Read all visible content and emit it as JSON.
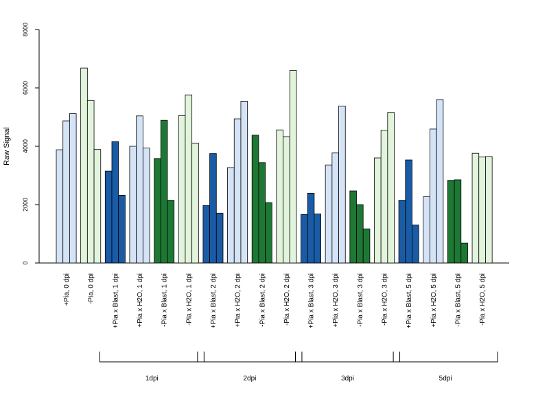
{
  "chart_data": {
    "type": "bar",
    "title": "",
    "xlabel": "",
    "ylabel": "Raw Signal",
    "ylim": [
      0,
      8000
    ],
    "yticks": [
      "0",
      "2000",
      "4000",
      "6000",
      "8000"
    ],
    "grid": false,
    "legend": "none",
    "categories": [
      "+Pia, 0 dpi",
      "-Pia, 0 dpi",
      "+Pia x Blast, 1 dpi",
      "+Pia x H2O, 1 dpi",
      "-Pia x Blast, 1 dpi",
      "-Pia x H2O, 1 dpi",
      "+Pia x Blast, 2 dpi",
      "+Pia x H2O, 2 dpi",
      "-Pia x Blast, 2 dpi",
      "-Pia x H2O, 2 dpi",
      "+Pia x Blast, 3 dpi",
      "+Pia x H2O, 3 dpi",
      "-Pia x Blast, 3 dpi",
      "-Pia x H2O, 3 dpi",
      "+Pia x Blast, 5 dpi",
      "+Pia x H2O, 5 dpi",
      "-Pia x Blast, 5 dpi",
      "-Pia x H2O, 5 dpi"
    ],
    "colors": [
      "#d4e3f5",
      "#e2f5dc",
      "#1a5ba6",
      "#d4e3f5",
      "#1e7834",
      "#e2f5dc",
      "#1a5ba6",
      "#d4e3f5",
      "#1e7834",
      "#e2f5dc",
      "#1a5ba6",
      "#d4e3f5",
      "#1e7834",
      "#e2f5dc",
      "#1a5ba6",
      "#d4e3f5",
      "#1e7834",
      "#e2f5dc"
    ],
    "values": [
      [
        3880,
        4870,
        5120
      ],
      [
        6680,
        5570,
        3890
      ],
      [
        3150,
        4160,
        2320
      ],
      [
        4000,
        5040,
        3940
      ],
      [
        3580,
        4890,
        2150
      ],
      [
        5050,
        5760,
        4110
      ],
      [
        1970,
        3750,
        1710
      ],
      [
        3270,
        4940,
        5540
      ],
      [
        4380,
        3440,
        2070
      ],
      [
        4560,
        4330,
        6600
      ],
      [
        1660,
        2390,
        1680
      ],
      [
        3360,
        3770,
        5380
      ],
      [
        2470,
        2000,
        1170
      ],
      [
        3600,
        4550,
        5160
      ],
      [
        2150,
        3530,
        1300
      ],
      [
        2270,
        4590,
        5600
      ],
      [
        2830,
        2850,
        680
      ],
      [
        3760,
        3630,
        3650
      ]
    ],
    "groups": [
      {
        "label": "1dpi",
        "first": 2,
        "last": 5
      },
      {
        "label": "2dpi",
        "first": 6,
        "last": 9
      },
      {
        "label": "3dpi",
        "first": 10,
        "last": 13
      },
      {
        "label": "5dpi",
        "first": 14,
        "last": 17
      }
    ]
  }
}
